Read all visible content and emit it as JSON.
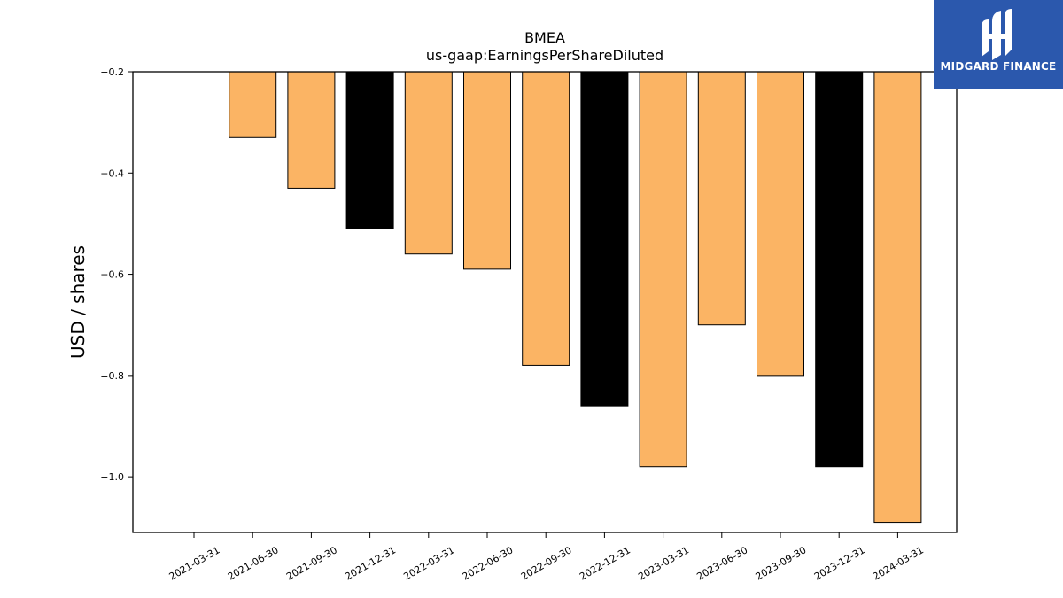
{
  "chart_data": {
    "type": "bar",
    "title": "BMEA",
    "subtitle": "us-gaap:EarningsPerShareDiluted",
    "ylabel": "USD / shares",
    "xlabel": "",
    "ylim": [
      -1.11,
      -0.2
    ],
    "yticks": [
      -0.2,
      -0.4,
      -0.6,
      -0.8,
      -1.0
    ],
    "ytick_labels": [
      "−0.2",
      "−0.4",
      "−0.6",
      "−0.8",
      "−1.0"
    ],
    "categories": [
      "2021-03-31",
      "2021-06-30",
      "2021-09-30",
      "2021-12-31",
      "2022-03-31",
      "2022-06-30",
      "2022-09-30",
      "2022-12-31",
      "2023-03-31",
      "2023-06-30",
      "2023-09-30",
      "2023-12-31",
      "2024-03-31"
    ],
    "values": [
      null,
      -0.33,
      -0.43,
      -0.51,
      -0.56,
      -0.59,
      -0.78,
      -0.86,
      -0.98,
      -0.7,
      -0.8,
      -0.98,
      -1.09
    ],
    "bar_colors": [
      "#fbb464",
      "#fbb464",
      "#fbb464",
      "#000000",
      "#fbb464",
      "#fbb464",
      "#fbb464",
      "#000000",
      "#fbb464",
      "#fbb464",
      "#fbb464",
      "#000000",
      "#fbb464"
    ],
    "grid": false,
    "legend": "none"
  },
  "logo": {
    "text": "MIDGARD FINANCE",
    "background": "#2b58ad"
  }
}
